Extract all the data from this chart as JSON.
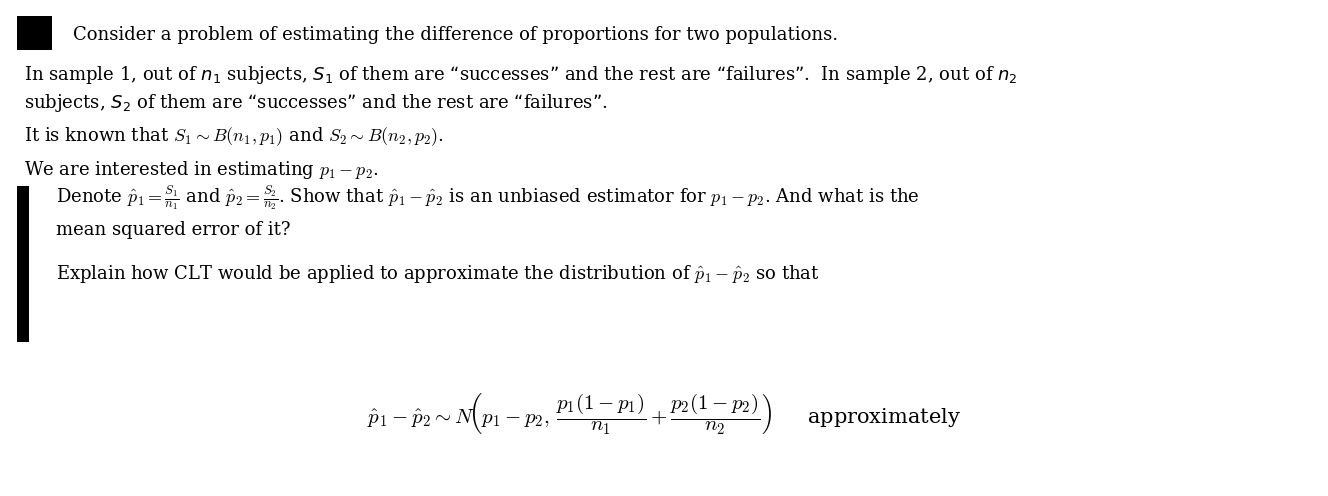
{
  "bg_color": "#ffffff",
  "text_color": "#000000",
  "black_square_color": "#000000",
  "fig_width": 13.28,
  "fig_height": 4.96,
  "dpi": 100,
  "line1": "Consider a problem of estimating the difference of proportions for two populations.",
  "line2a": "In sample 1, out of $n_1$ subjects, $S_1$ of them are “successes” and the rest are “failures”.  In sample 2, out of $n_2$",
  "line2b": "subjects, $S_2$ of them are “successes” and the rest are “failures”.",
  "line3": "It is known that $S_1 \\sim B(n_1, p_1)$ and $S_2 \\sim B(n_2, p_2)$.",
  "line4": "We are interested in estimating $p_1 - p_2$.",
  "q1a": "Denote $\\hat{p}_1 = \\frac{S_1}{n_1}$ and $\\hat{p}_2 = \\frac{S_2}{n_2}$. Show that $\\hat{p}_1 - \\hat{p}_2$ is an unbiased estimator for $p_1 - p_2$. And what is the",
  "q1b": "mean squared error of it?",
  "q2": "Explain how CLT would be applied to approximate the distribution of $\\hat{p}_1 - \\hat{p}_2$ so that",
  "formula": "$\\hat{p}_1 - \\hat{p}_2 \\sim N\\!\\left( p_1 - p_2,\\, \\dfrac{p_1(1-p_1)}{n_1} + \\dfrac{p_2(1-p_2)}{n_2} \\right)$     approximately"
}
